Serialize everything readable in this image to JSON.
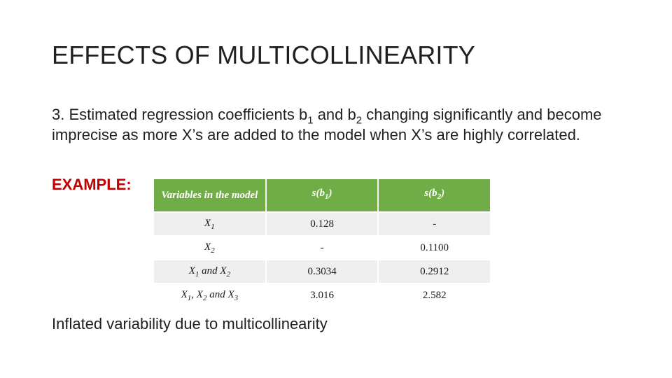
{
  "title": "EFFECTS OF MULTICOLLINEARITY",
  "paragraph": {
    "part1": "3. Estimated regression coefficients b",
    "sub1": "1",
    "part2": " and b",
    "sub2": "2",
    "part3": " changing significantly and become imprecise as more X’s are added to the model when X’s are highly correlated."
  },
  "example_label": "EXAMPLE:",
  "table": {
    "headers": {
      "col0": "Variables in the model",
      "col1_main": "s(b",
      "col1_sub": "1",
      "col1_end": ")",
      "col2_main": "s(b",
      "col2_sub": "2",
      "col2_end": ")"
    },
    "rows": [
      {
        "var": [
          [
            "X",
            "1"
          ]
        ],
        "s_b1": "0.128",
        "s_b2": "-"
      },
      {
        "var": [
          [
            "X",
            "2"
          ]
        ],
        "s_b1": "-",
        "s_b2": "0.1100"
      },
      {
        "var_text": "X1 and X2",
        "s_b1": "0.3034",
        "s_b2": "0.2912"
      },
      {
        "var_text": "X1, X2 and X3",
        "s_b1": "3.016",
        "s_b2": "2.582"
      }
    ]
  },
  "footer": "Inflated variability due to multicollinearity"
}
